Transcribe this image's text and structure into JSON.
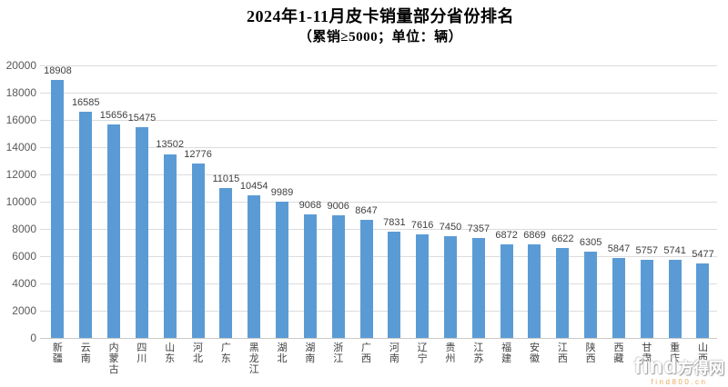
{
  "watermark": {
    "logo": "find",
    "site": "方得网",
    "url": "find800.cn"
  },
  "colors": {
    "bar": "#5B9BD5",
    "grid": "#dcdcdc",
    "axis_text": "#595959",
    "value_label_text": "#3f3f3f",
    "title_text": "#000000",
    "watermark_url": "#E59A3C"
  },
  "chart_data": {
    "type": "bar",
    "title": "2024年1-11月皮卡销量部分省份排名",
    "subtitle": "（累销≥5000；单位：辆）",
    "categories": [
      "新疆",
      "云南",
      "内蒙古",
      "四川",
      "山东",
      "河北",
      "广东",
      "黑龙江",
      "湖北",
      "湖南",
      "浙江",
      "广西",
      "河南",
      "辽宁",
      "贵州",
      "江苏",
      "福建",
      "安徽",
      "江西",
      "陕西",
      "西藏",
      "甘肃",
      "重庆",
      "山西"
    ],
    "values": [
      18908,
      16585,
      15656,
      15475,
      13502,
      12776,
      11015,
      10454,
      9989,
      9068,
      9006,
      8647,
      7831,
      7616,
      7450,
      7357,
      6872,
      6869,
      6622,
      6305,
      5847,
      5757,
      5741,
      5477
    ],
    "xlabel": "",
    "ylabel": "",
    "ylim": [
      0,
      20000
    ],
    "ytick_step": 2000,
    "grid": true,
    "legend": false,
    "value_labels": true,
    "bar_color": "#5B9BD5"
  }
}
